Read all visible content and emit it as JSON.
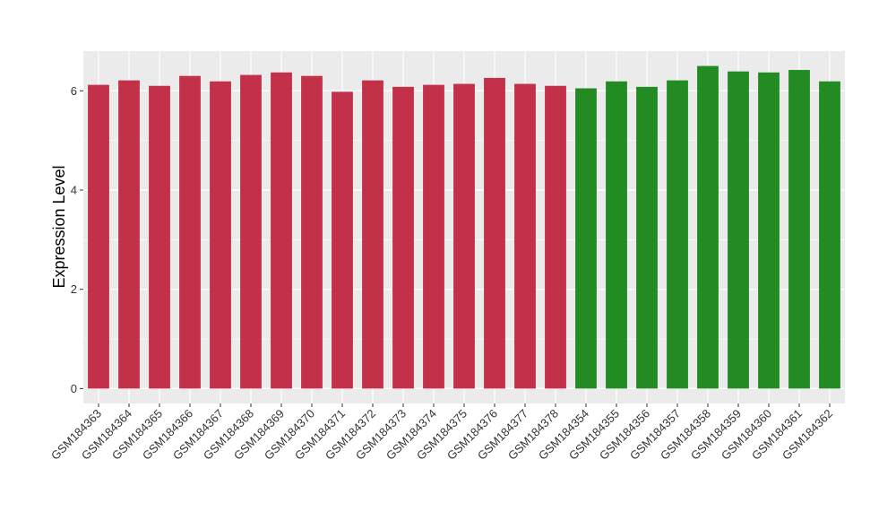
{
  "chart_data": {
    "type": "bar",
    "title": "",
    "xlabel": "",
    "ylabel": "Expression Level",
    "ylim": [
      -0.3,
      6.8
    ],
    "yticks": [
      0,
      2,
      4,
      6
    ],
    "grid": true,
    "background": "#EBEBEB",
    "gridline_color": "#FFFFFF",
    "legend": "none",
    "categories": [
      "GSM184363",
      "GSM184364",
      "GSM184365",
      "GSM184366",
      "GSM184367",
      "GSM184368",
      "GSM184369",
      "GSM184370",
      "GSM184371",
      "GSM184372",
      "GSM184373",
      "GSM184374",
      "GSM184375",
      "GSM184376",
      "GSM184377",
      "GSM184378",
      "GSM184354",
      "GSM184355",
      "GSM184356",
      "GSM184357",
      "GSM184358",
      "GSM184359",
      "GSM184360",
      "GSM184361",
      "GSM184362"
    ],
    "values": [
      6.12,
      6.21,
      6.1,
      6.3,
      6.19,
      6.32,
      6.37,
      6.3,
      5.98,
      6.21,
      6.08,
      6.12,
      6.14,
      6.26,
      6.14,
      6.1,
      6.05,
      6.19,
      6.08,
      6.21,
      6.5,
      6.39,
      6.37,
      6.42,
      6.19
    ],
    "groups": [
      "1",
      "1",
      "1",
      "1",
      "1",
      "1",
      "1",
      "1",
      "1",
      "1",
      "1",
      "1",
      "1",
      "1",
      "1",
      "1",
      "2",
      "2",
      "2",
      "2",
      "2",
      "2",
      "2",
      "2",
      "2"
    ],
    "group_colors": {
      "1": "#C3304A",
      "2": "#228B22"
    }
  }
}
